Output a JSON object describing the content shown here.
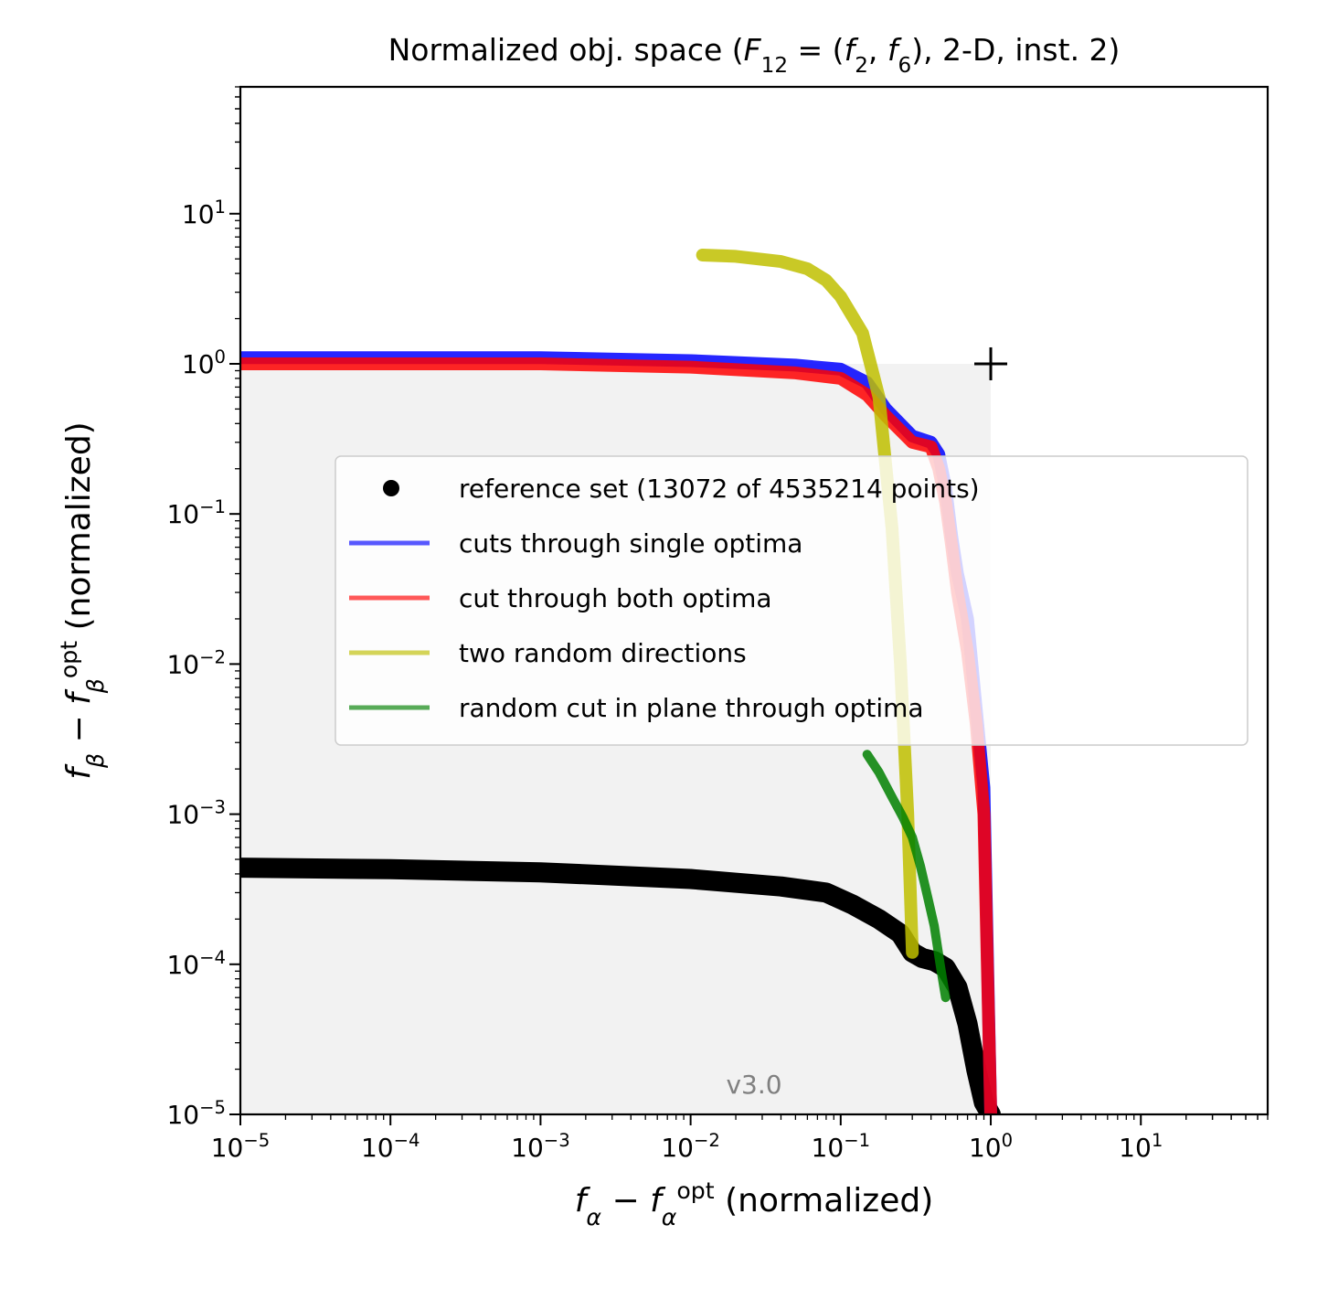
{
  "chart_data": {
    "type": "line",
    "title": "Normalized obj. space (F₁₂ = (f₂, f₆), 2-D, inst. 2)",
    "xlabel": "f_α − f_α^opt (normalized)",
    "ylabel": "f_β − f_β^opt (normalized)",
    "xscale": "log",
    "yscale": "log",
    "xlim": [
      1e-05,
      70
    ],
    "ylim": [
      1e-05,
      70
    ],
    "x_ticks": [
      {
        "base": "10",
        "exp": "−5"
      },
      {
        "base": "10",
        "exp": "−4"
      },
      {
        "base": "10",
        "exp": "−3"
      },
      {
        "base": "10",
        "exp": "−2"
      },
      {
        "base": "10",
        "exp": "−1"
      },
      {
        "base": "10",
        "exp": "0"
      },
      {
        "base": "10",
        "exp": "1"
      }
    ],
    "y_ticks": [
      {
        "base": "10",
        "exp": "−5"
      },
      {
        "base": "10",
        "exp": "−4"
      },
      {
        "base": "10",
        "exp": "−3"
      },
      {
        "base": "10",
        "exp": "−2"
      },
      {
        "base": "10",
        "exp": "−1"
      },
      {
        "base": "10",
        "exp": "0"
      },
      {
        "base": "10",
        "exp": "1"
      }
    ],
    "grid": false,
    "legend_position": "center-right",
    "version_label": "v3.0",
    "region_fill": "#f2f2f2",
    "series": [
      {
        "name": "reference set (13072 of 4535214 points)",
        "color": "#000000",
        "style": "markers",
        "x": [
          1e-05,
          0.0001,
          0.001,
          0.01,
          0.04,
          0.08,
          0.12,
          0.18,
          0.25,
          0.3,
          0.35,
          0.42,
          0.5,
          0.6,
          0.7,
          0.8,
          0.9,
          1.0
        ],
        "y": [
          0.00044,
          0.00043,
          0.00041,
          0.00037,
          0.00033,
          0.0003,
          0.00025,
          0.0002,
          0.00016,
          0.00012,
          0.00011,
          0.000105,
          9.5e-05,
          7e-05,
          4e-05,
          2e-05,
          1.2e-05,
          1e-05
        ]
      },
      {
        "name": "cuts through single optima",
        "color": "#0000ff",
        "style": "line",
        "x": [
          1e-05,
          0.001,
          0.01,
          0.05,
          0.1,
          0.15,
          0.2,
          0.3,
          0.4,
          0.45,
          0.5,
          0.55,
          0.6,
          0.7,
          0.8,
          0.9,
          1.0
        ],
        "y": [
          1.1,
          1.1,
          1.05,
          0.98,
          0.92,
          0.75,
          0.5,
          0.33,
          0.3,
          0.25,
          0.15,
          0.07,
          0.04,
          0.02,
          0.005,
          0.0015,
          1e-05
        ]
      },
      {
        "name": "cut through both optima",
        "color": "#ff0000",
        "style": "line",
        "x": [
          1e-05,
          0.001,
          0.01,
          0.05,
          0.1,
          0.15,
          0.2,
          0.3,
          0.4,
          0.45,
          0.5,
          0.55,
          0.6,
          0.7,
          0.8,
          0.9,
          1.0
        ],
        "y": [
          1.0,
          1.0,
          0.95,
          0.87,
          0.8,
          0.62,
          0.45,
          0.3,
          0.28,
          0.2,
          0.12,
          0.06,
          0.03,
          0.012,
          0.004,
          0.001,
          1e-05
        ]
      },
      {
        "name": "two random directions",
        "color": "#bfbf00",
        "style": "line",
        "x": [
          0.012,
          0.02,
          0.04,
          0.06,
          0.08,
          0.1,
          0.14,
          0.18,
          0.22,
          0.25,
          0.28,
          0.3
        ],
        "y": [
          5.3,
          5.2,
          4.8,
          4.3,
          3.6,
          2.8,
          1.6,
          0.6,
          0.08,
          0.01,
          0.001,
          0.00012
        ]
      },
      {
        "name": "random cut in plane through optima",
        "color": "#008000",
        "style": "line",
        "x": [
          0.15,
          0.18,
          0.22,
          0.26,
          0.3,
          0.34,
          0.38,
          0.42,
          0.46,
          0.5
        ],
        "y": [
          0.0025,
          0.0019,
          0.0013,
          0.00095,
          0.0007,
          0.00045,
          0.00028,
          0.00018,
          0.0001,
          6e-05
        ]
      }
    ]
  }
}
